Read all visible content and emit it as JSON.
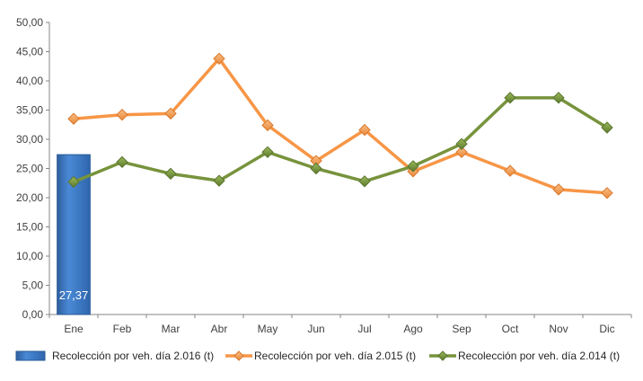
{
  "chart_data": {
    "type": "bar+line",
    "title": "",
    "xlabel": "",
    "ylabel": "",
    "categories": [
      "Ene",
      "Feb",
      "Mar",
      "Abr",
      "May",
      "Jun",
      "Jul",
      "Ago",
      "Sep",
      "Oct",
      "Nov",
      "Dic"
    ],
    "y_ticks": [
      "0,00",
      "5,00",
      "10,00",
      "15,00",
      "20,00",
      "25,00",
      "30,00",
      "35,00",
      "40,00",
      "45,00",
      "50,00"
    ],
    "ylim": [
      0,
      50
    ],
    "grid": false,
    "legend_position": "bottom",
    "series": [
      {
        "name": "Recolección por veh. día 2.016 (t)",
        "type": "bar",
        "color": "#3B78C4",
        "values": [
          27.37,
          null,
          null,
          null,
          null,
          null,
          null,
          null,
          null,
          null,
          null,
          null
        ],
        "data_labels": [
          "27,37"
        ]
      },
      {
        "name": "Recolección por veh. día 2.015 (t)",
        "type": "line",
        "color": "#F79646",
        "marker": "diamond",
        "values": [
          33.5,
          34.2,
          34.4,
          43.8,
          32.4,
          26.3,
          31.6,
          24.5,
          27.8,
          24.6,
          21.4,
          20.8
        ]
      },
      {
        "name": "Recolección por veh. día 2.014 (t)",
        "type": "line",
        "color": "#77933C",
        "marker": "diamond",
        "values": [
          22.7,
          26.1,
          24.1,
          22.9,
          27.8,
          25.0,
          22.8,
          25.4,
          29.2,
          37.1,
          37.1,
          32.0
        ]
      }
    ]
  }
}
